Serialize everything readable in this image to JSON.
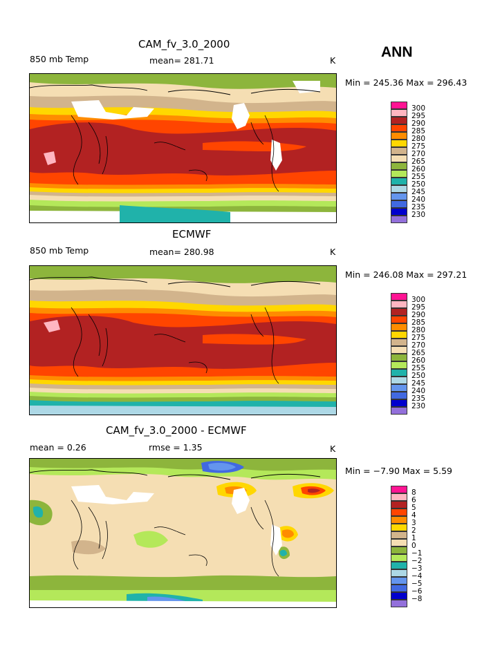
{
  "season": "ANN",
  "colors": {
    "pink": "#ff1493",
    "lightpink": "#ffb6c1",
    "darkred": "#b22222",
    "orangered": "#ff4500",
    "orange": "#ff8c00",
    "gold": "#ffd700",
    "tan": "#d2b48c",
    "wheat": "#f5deb3",
    "olivegreen": "#8db53c",
    "lightgreen": "#b4e85a",
    "teal": "#20b2aa",
    "lightblue": "#add8e6",
    "cornflower": "#6495ed",
    "royalblue": "#4169e1",
    "navy": "#0000cd",
    "purple": "#9370db"
  },
  "panels": [
    {
      "title": "CAM_fv_3.0_2000",
      "left_label": "850 mb Temp",
      "center_label": "mean= 281.71",
      "units": "K",
      "minmax": "Min = 245.36 Max = 296.43",
      "legend_labels": [
        "300",
        "295",
        "290",
        "285",
        "280",
        "275",
        "270",
        "265",
        "260",
        "255",
        "250",
        "245",
        "240",
        "235",
        "230"
      ]
    },
    {
      "title": "ECMWF",
      "left_label": "850 mb Temp",
      "center_label": "mean= 280.98",
      "units": "K",
      "minmax": "Min = 246.08 Max = 297.21",
      "legend_labels": [
        "300",
        "295",
        "290",
        "285",
        "280",
        "275",
        "270",
        "265",
        "260",
        "255",
        "250",
        "245",
        "240",
        "235",
        "230"
      ]
    },
    {
      "title": "CAM_fv_3.0_2000 - ECMWF",
      "left_label": "mean =    0.26",
      "center_label": "rmse =    1.35",
      "units": "K",
      "minmax": "Min =  −7.90 Max =    5.59",
      "legend_labels": [
        "8",
        "6",
        "5",
        "4",
        "3",
        "2",
        "1",
        "0",
        "−1",
        "−2",
        "−3",
        "−4",
        "−5",
        "−6",
        "−8"
      ]
    }
  ]
}
